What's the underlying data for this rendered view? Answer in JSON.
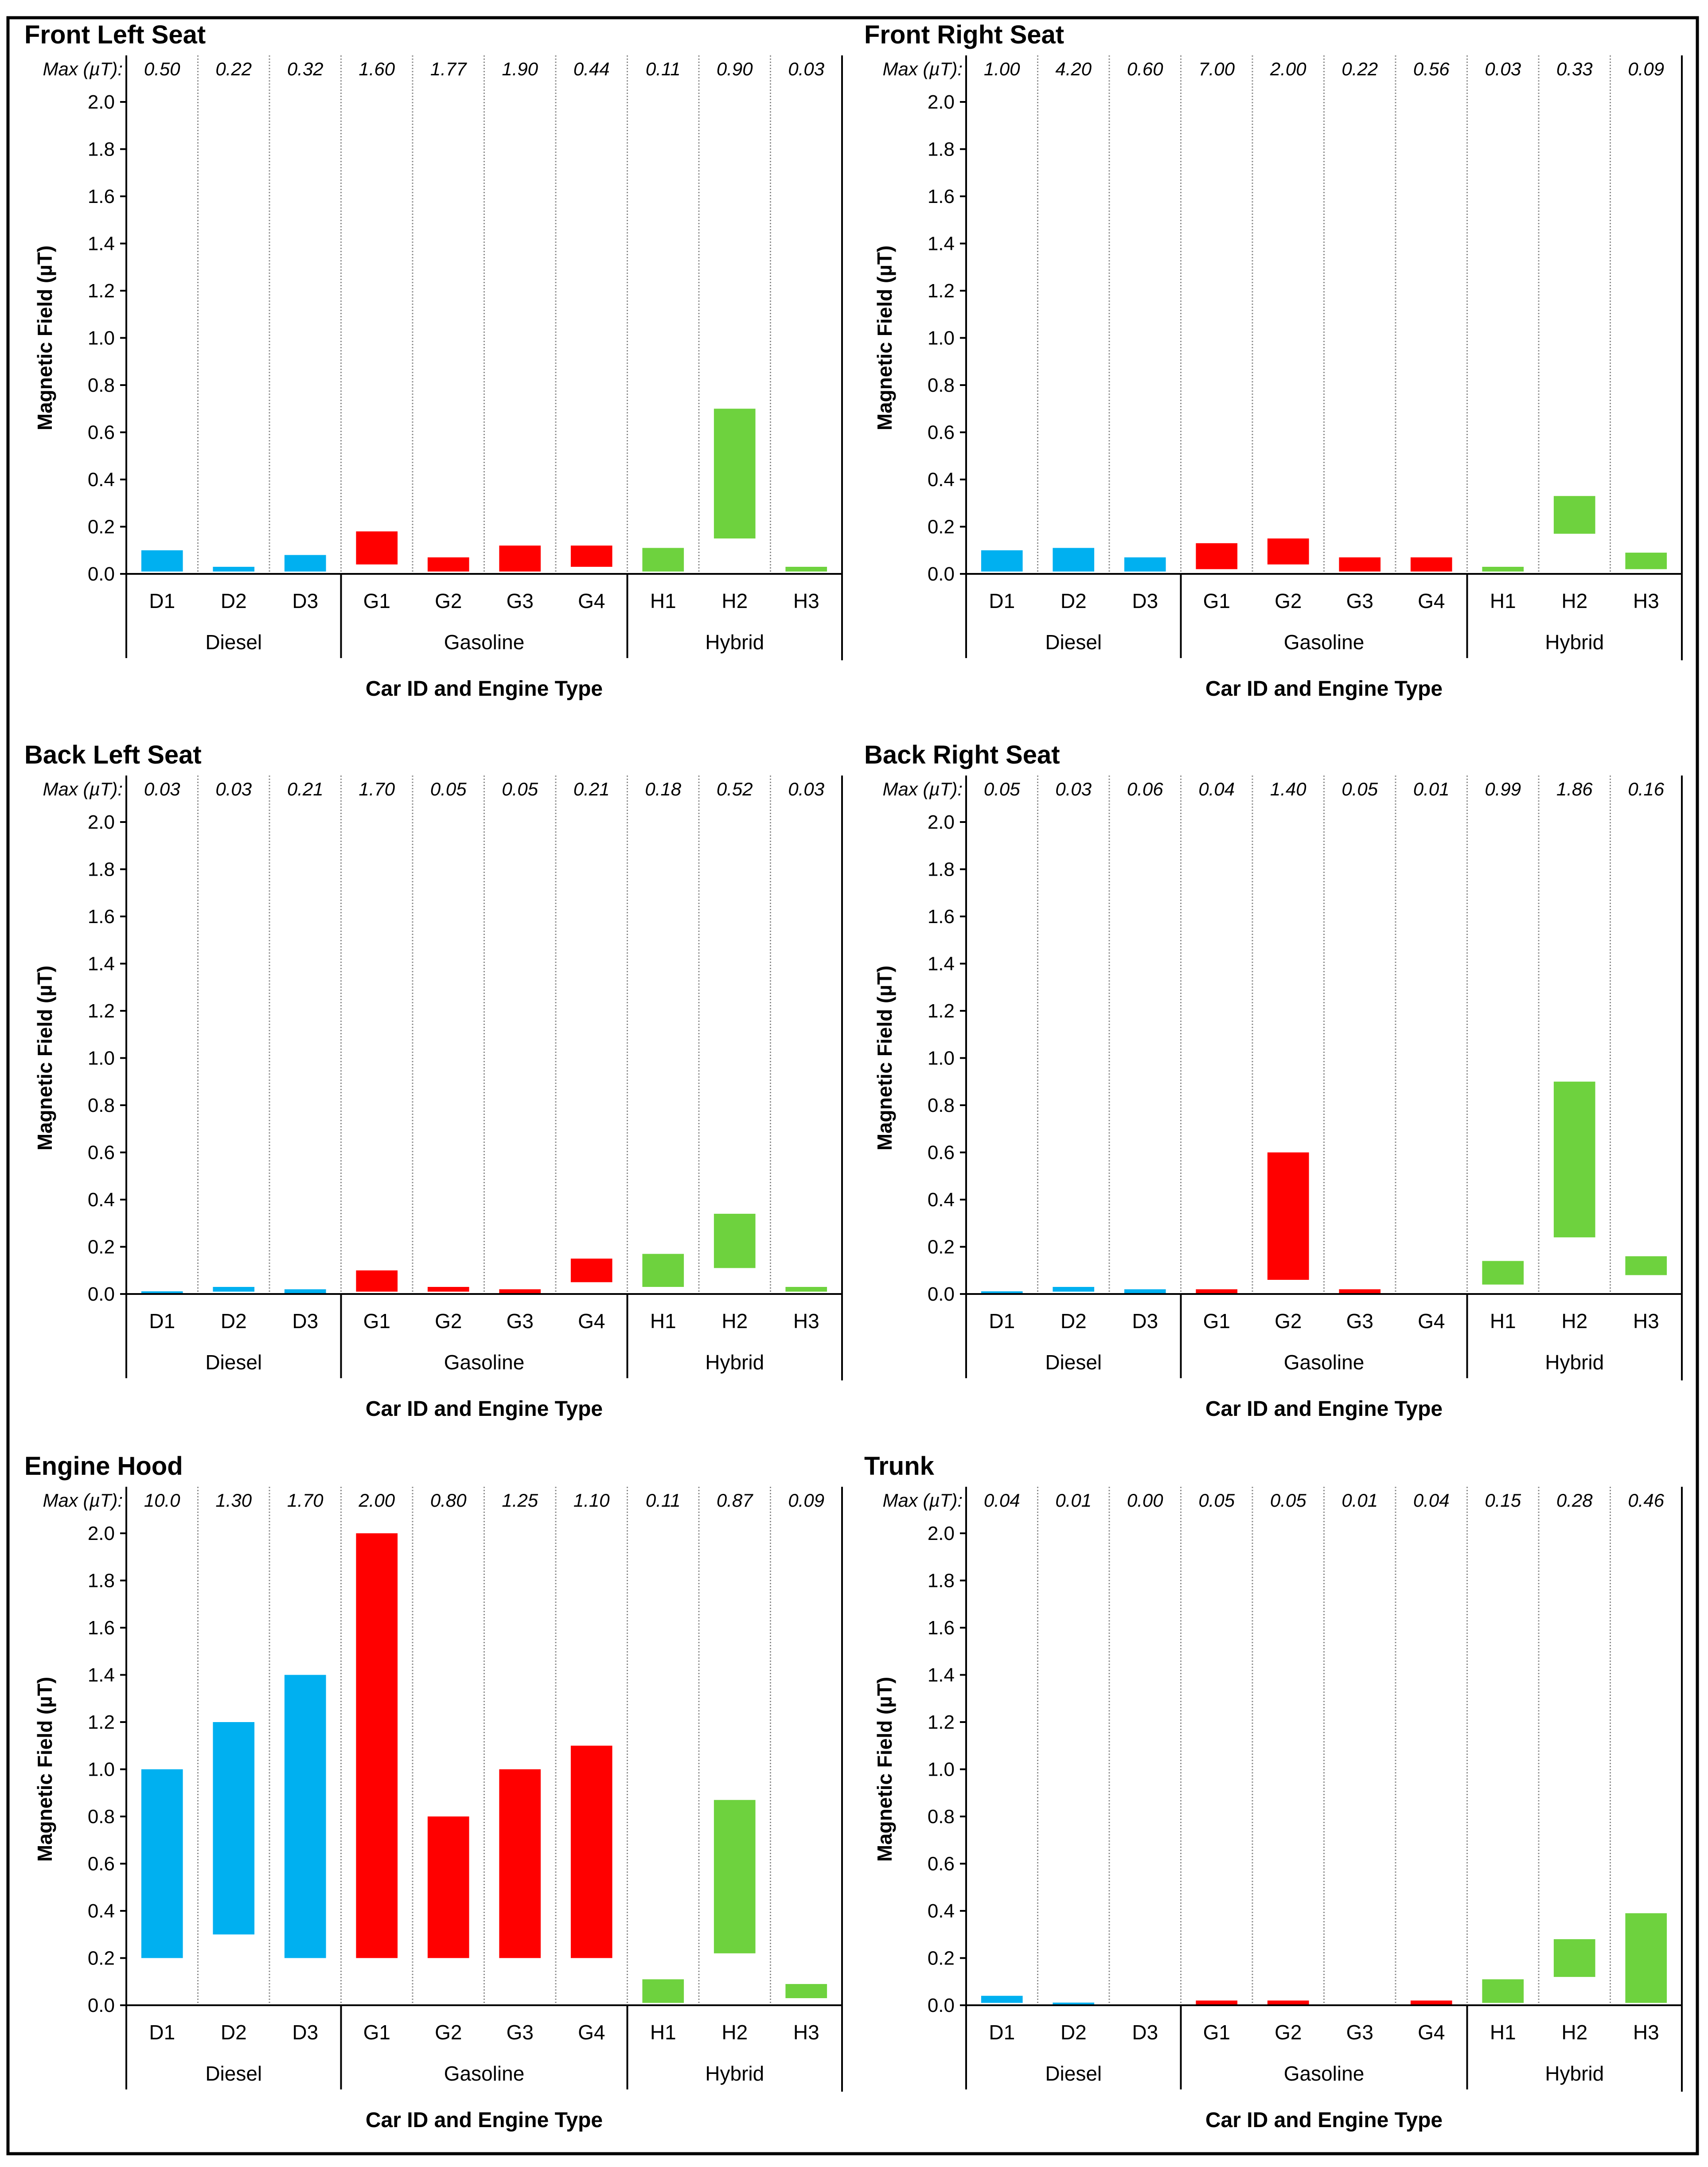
{
  "colors": {
    "Diesel": "#00B0F0",
    "Gasoline": "#FF0000",
    "Hybrid": "#6ED23E"
  },
  "shared": {
    "max_prefix": "Max (µT):",
    "y_axis_label": "Magnetic Field (µT)",
    "x_axis_label": "Car ID and Engine Type",
    "ticks": [
      "0.0",
      "0.2",
      "0.4",
      "0.6",
      "0.8",
      "1.0",
      "1.2",
      "1.4",
      "1.6",
      "1.8",
      "2.0"
    ],
    "groups": [
      {
        "name": "Diesel",
        "ids": [
          "D1",
          "D2",
          "D3"
        ]
      },
      {
        "name": "Gasoline",
        "ids": [
          "G1",
          "G2",
          "G3",
          "G4"
        ]
      },
      {
        "name": "Hybrid",
        "ids": [
          "H1",
          "H2",
          "H3"
        ]
      }
    ]
  },
  "chart_data": [
    {
      "type": "bar",
      "title": "Front Left Seat",
      "xlabel": "Car ID and Engine Type",
      "ylabel": "Magnetic Field (µT)",
      "ylim": [
        0,
        2.0
      ],
      "categories": [
        "D1",
        "D2",
        "D3",
        "G1",
        "G2",
        "G3",
        "G4",
        "H1",
        "H2",
        "H3"
      ],
      "engine": [
        "Diesel",
        "Diesel",
        "Diesel",
        "Gasoline",
        "Gasoline",
        "Gasoline",
        "Gasoline",
        "Hybrid",
        "Hybrid",
        "Hybrid"
      ],
      "max_values": [
        "0.50",
        "0.22",
        "0.32",
        "1.60",
        "1.77",
        "1.90",
        "0.44",
        "0.11",
        "0.90",
        "0.03"
      ],
      "ranges": [
        [
          0.01,
          0.1
        ],
        [
          0.01,
          0.03
        ],
        [
          0.01,
          0.08
        ],
        [
          0.04,
          0.18
        ],
        [
          0.01,
          0.07
        ],
        [
          0.01,
          0.12
        ],
        [
          0.03,
          0.12
        ],
        [
          0.01,
          0.11
        ],
        [
          0.15,
          0.7
        ],
        [
          0.01,
          0.03
        ]
      ]
    },
    {
      "type": "bar",
      "title": "Front Right Seat",
      "xlabel": "Car ID and Engine Type",
      "ylabel": "Magnetic Field (µT)",
      "ylim": [
        0,
        2.0
      ],
      "categories": [
        "D1",
        "D2",
        "D3",
        "G1",
        "G2",
        "G3",
        "G4",
        "H1",
        "H2",
        "H3"
      ],
      "engine": [
        "Diesel",
        "Diesel",
        "Diesel",
        "Gasoline",
        "Gasoline",
        "Gasoline",
        "Gasoline",
        "Hybrid",
        "Hybrid",
        "Hybrid"
      ],
      "max_values": [
        "1.00",
        "4.20",
        "0.60",
        "7.00",
        "2.00",
        "0.22",
        "0.56",
        "0.03",
        "0.33",
        "0.09"
      ],
      "ranges": [
        [
          0.01,
          0.1
        ],
        [
          0.01,
          0.11
        ],
        [
          0.01,
          0.07
        ],
        [
          0.02,
          0.13
        ],
        [
          0.04,
          0.15
        ],
        [
          0.01,
          0.07
        ],
        [
          0.01,
          0.07
        ],
        [
          0.01,
          0.03
        ],
        [
          0.17,
          0.33
        ],
        [
          0.02,
          0.09
        ]
      ]
    },
    {
      "type": "bar",
      "title": "Back Left Seat",
      "xlabel": "Car ID and Engine Type",
      "ylabel": "Magnetic Field (µT)",
      "ylim": [
        0,
        2.0
      ],
      "categories": [
        "D1",
        "D2",
        "D3",
        "G1",
        "G2",
        "G3",
        "G4",
        "H1",
        "H2",
        "H3"
      ],
      "engine": [
        "Diesel",
        "Diesel",
        "Diesel",
        "Gasoline",
        "Gasoline",
        "Gasoline",
        "Gasoline",
        "Hybrid",
        "Hybrid",
        "Hybrid"
      ],
      "max_values": [
        "0.03",
        "0.03",
        "0.21",
        "1.70",
        "0.05",
        "0.05",
        "0.21",
        "0.18",
        "0.52",
        "0.03"
      ],
      "ranges": [
        [
          0.0,
          0.01
        ],
        [
          0.01,
          0.03
        ],
        [
          0.0,
          0.02
        ],
        [
          0.01,
          0.1
        ],
        [
          0.01,
          0.03
        ],
        [
          0.0,
          0.02
        ],
        [
          0.05,
          0.15
        ],
        [
          0.03,
          0.17
        ],
        [
          0.11,
          0.34
        ],
        [
          0.01,
          0.03
        ]
      ]
    },
    {
      "type": "bar",
      "title": "Back Right Seat",
      "xlabel": "Car ID and Engine Type",
      "ylabel": "Magnetic Field (µT)",
      "ylim": [
        0,
        2.0
      ],
      "categories": [
        "D1",
        "D2",
        "D3",
        "G1",
        "G2",
        "G3",
        "G4",
        "H1",
        "H2",
        "H3"
      ],
      "engine": [
        "Diesel",
        "Diesel",
        "Diesel",
        "Gasoline",
        "Gasoline",
        "Gasoline",
        "Gasoline",
        "Hybrid",
        "Hybrid",
        "Hybrid"
      ],
      "max_values": [
        "0.05",
        "0.03",
        "0.06",
        "0.04",
        "1.40",
        "0.05",
        "0.01",
        "0.99",
        "1.86",
        "0.16"
      ],
      "ranges": [
        [
          0.0,
          0.01
        ],
        [
          0.01,
          0.03
        ],
        [
          0.0,
          0.02
        ],
        [
          0.0,
          0.02
        ],
        [
          0.06,
          0.6
        ],
        [
          0.0,
          0.02
        ],
        [
          0.0,
          0.0
        ],
        [
          0.04,
          0.14
        ],
        [
          0.24,
          0.9
        ],
        [
          0.08,
          0.16
        ]
      ]
    },
    {
      "type": "bar",
      "title": "Engine Hood",
      "xlabel": "Car ID and Engine Type",
      "ylabel": "Magnetic Field (µT)",
      "ylim": [
        0,
        2.0
      ],
      "categories": [
        "D1",
        "D2",
        "D3",
        "G1",
        "G2",
        "G3",
        "G4",
        "H1",
        "H2",
        "H3"
      ],
      "engine": [
        "Diesel",
        "Diesel",
        "Diesel",
        "Gasoline",
        "Gasoline",
        "Gasoline",
        "Gasoline",
        "Hybrid",
        "Hybrid",
        "Hybrid"
      ],
      "max_values": [
        "10.0",
        "1.30",
        "1.70",
        "2.00",
        "0.80",
        "1.25",
        "1.10",
        "0.11",
        "0.87",
        "0.09"
      ],
      "ranges": [
        [
          0.2,
          1.0
        ],
        [
          0.3,
          1.2
        ],
        [
          0.2,
          1.4
        ],
        [
          0.2,
          2.0
        ],
        [
          0.2,
          0.8
        ],
        [
          0.2,
          1.0
        ],
        [
          0.2,
          1.1
        ],
        [
          0.01,
          0.11
        ],
        [
          0.22,
          0.87
        ],
        [
          0.03,
          0.09
        ]
      ]
    },
    {
      "type": "bar",
      "title": "Trunk",
      "xlabel": "Car ID and Engine Type",
      "ylabel": "Magnetic Field (µT)",
      "ylim": [
        0,
        2.0
      ],
      "categories": [
        "D1",
        "D2",
        "D3",
        "G1",
        "G2",
        "G3",
        "G4",
        "H1",
        "H2",
        "H3"
      ],
      "engine": [
        "Diesel",
        "Diesel",
        "Diesel",
        "Gasoline",
        "Gasoline",
        "Gasoline",
        "Gasoline",
        "Hybrid",
        "Hybrid",
        "Hybrid"
      ],
      "max_values": [
        "0.04",
        "0.01",
        "0.00",
        "0.05",
        "0.05",
        "0.01",
        "0.04",
        "0.15",
        "0.28",
        "0.46"
      ],
      "ranges": [
        [
          0.01,
          0.04
        ],
        [
          0.0,
          0.01
        ],
        [
          0.0,
          0.0
        ],
        [
          0.0,
          0.02
        ],
        [
          0.0,
          0.02
        ],
        [
          0.0,
          0.0
        ],
        [
          0.0,
          0.02
        ],
        [
          0.01,
          0.11
        ],
        [
          0.12,
          0.28
        ],
        [
          0.01,
          0.39
        ]
      ]
    }
  ]
}
